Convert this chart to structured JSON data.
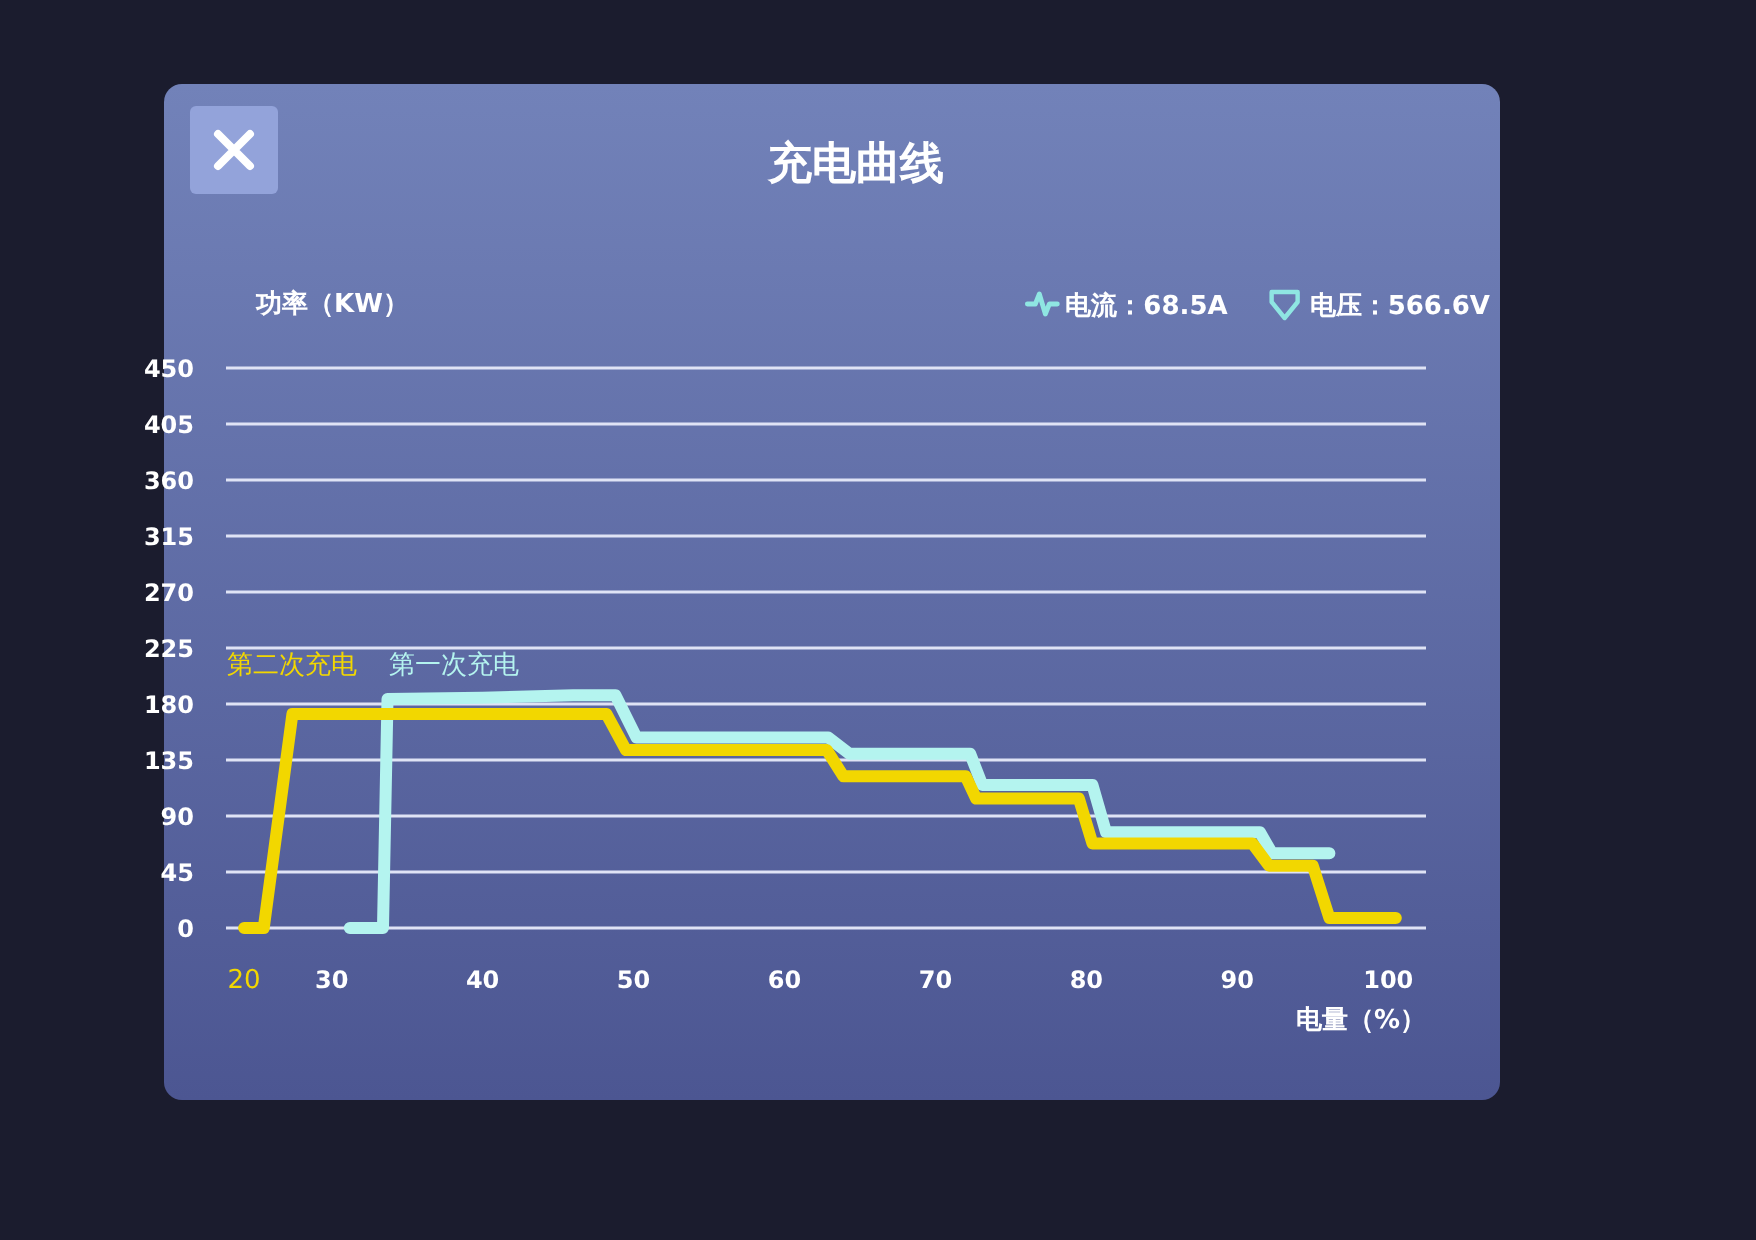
{
  "chart_data": {
    "type": "line",
    "title": "充电曲线",
    "xlabel": "电量（%）",
    "ylabel": "功率（KW）",
    "annotations": [
      "电流：68.5A",
      "电压：566.6V",
      {
        "text": "20",
        "x": 24.2,
        "y": 0
      }
    ],
    "series": [
      {
        "name": "第一次充电",
        "color": "#b4f4ef",
        "x": [
          31.2,
          33.4,
          33.7,
          40,
          46,
          48.8,
          50.2,
          62.9,
          64.3,
          72.3,
          73.1,
          80.4,
          81.3,
          91.5,
          92.3,
          96.1
        ],
        "values": [
          0,
          0,
          184,
          185,
          187,
          187,
          153,
          153,
          140,
          140,
          115,
          115,
          77,
          77,
          60,
          60
        ]
      },
      {
        "name": "第二次充电",
        "color": "#f2d700",
        "x": [
          24.2,
          25.5,
          27.4,
          48.2,
          49.5,
          62.8,
          63.9,
          72.0,
          72.7,
          79.5,
          80.4,
          91.0,
          92.1,
          95.0,
          96.1,
          100.5
        ],
        "values": [
          0,
          0,
          172,
          172,
          143,
          143,
          122,
          122,
          104,
          104,
          68,
          68,
          50,
          50,
          8,
          8
        ]
      }
    ],
    "xlim": [
      23,
      102.5
    ],
    "ylim": [
      0,
      450
    ],
    "xticks": [
      30,
      40,
      50,
      60,
      70,
      80,
      90,
      100
    ],
    "yticks": [
      0,
      45,
      90,
      135,
      180,
      225,
      270,
      315,
      360,
      405,
      450
    ],
    "grid": "y"
  }
}
